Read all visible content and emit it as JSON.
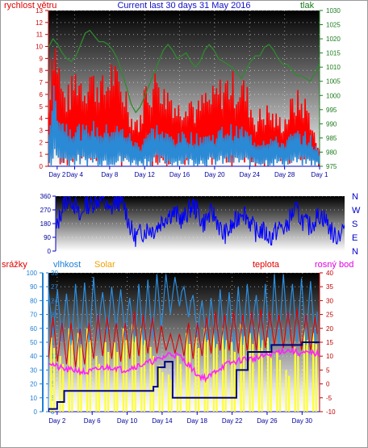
{
  "chart_data": [
    {
      "type": "line",
      "title": "Current last 30 days 31 May 2016",
      "y_left_label": "rychlost větru",
      "y_right_label": "tlak",
      "y_left_range": [
        0,
        13
      ],
      "y_right_range": [
        975,
        1030
      ],
      "y_left_ticks": [
        "0",
        "1",
        "2",
        "3",
        "4",
        "5",
        "6",
        "7",
        "8",
        "9",
        "10",
        "11",
        "12",
        "13"
      ],
      "y_right_ticks": [
        "975",
        "980",
        "985",
        "990",
        "995",
        "1000",
        "1005",
        "1010",
        "1015",
        "1020",
        "1025",
        "1030"
      ],
      "x_ticks": [
        "Day 2",
        "Day 4",
        "Day 8",
        "Day 12",
        "Day 16",
        "Day 20",
        "Day 24",
        "Day 28",
        "Day 1"
      ],
      "x_tick_days": [
        2,
        4,
        8,
        12,
        16,
        20,
        24,
        28,
        32
      ],
      "series": [
        {
          "name": "",
          "axis": "left",
          "color": "#ff0000",
          "values": [
            4.5,
            10.5,
            8.6,
            5.8,
            5.4,
            6.0,
            7.2,
            6.8,
            6.3,
            7.6,
            6.5,
            6.9,
            6.0,
            6.8,
            7.8,
            6.5,
            5.9,
            5.7,
            3.8,
            3.8,
            3.4,
            6.2,
            6.1,
            6.4,
            7.4,
            5.6,
            5.8,
            5.5,
            4.5,
            4.8,
            5.5,
            5.4,
            4.3,
            4.7,
            5.4,
            5.2,
            5.5,
            6.0,
            6.2,
            6.6,
            6.5,
            6.1,
            6.5,
            5.8,
            4.8,
            3.6,
            4.0,
            4.2,
            4.4,
            3.8,
            3.6,
            3.5,
            4.0,
            4.9,
            5.2,
            5.1,
            4.8,
            3.9,
            2.2,
            1.2
          ]
        },
        {
          "name": "",
          "axis": "left",
          "color": "#2a8ad6",
          "values": [
            3.2,
            6.2,
            5.4,
            4.0,
            3.6,
            3.4,
            3.5,
            3.2,
            3.0,
            3.6,
            3.4,
            3.2,
            3.0,
            3.3,
            3.5,
            3.2,
            3.1,
            3.0,
            2.4,
            2.0,
            1.8,
            2.8,
            3.0,
            3.2,
            3.4,
            2.8,
            2.6,
            2.6,
            2.4,
            2.6,
            2.8,
            2.7,
            2.4,
            2.6,
            2.8,
            2.6,
            2.7,
            2.9,
            3.1,
            3.3,
            3.2,
            3.0,
            3.2,
            2.9,
            2.6,
            2.2,
            2.3,
            2.4,
            2.5,
            2.3,
            2.2,
            2.1,
            2.3,
            2.6,
            2.8,
            2.7,
            2.6,
            2.4,
            1.8,
            1.0
          ]
        },
        {
          "name": "",
          "axis": "right",
          "color": "#2e8b2e",
          "values": [
            1017,
            1020,
            1018,
            1015,
            1013,
            1012,
            1014,
            1018,
            1022,
            1023,
            1021,
            1019,
            1019,
            1018,
            1016,
            1013,
            1008,
            1003,
            997,
            994,
            996,
            1000,
            1004,
            1008,
            1012,
            1016,
            1018,
            1016,
            1013,
            1014,
            1015,
            1012,
            1010,
            1012,
            1016,
            1018,
            1016,
            1013,
            1012,
            1011,
            1010,
            1008,
            1006,
            1009,
            1012,
            1014,
            1014,
            1017,
            1018,
            1016,
            1013,
            1011,
            1011,
            1009,
            1007,
            1007,
            1006,
            1005,
            1008,
            1011
          ]
        }
      ]
    },
    {
      "type": "line",
      "y_range": [
        0,
        360
      ],
      "y_ticks": [
        "0",
        "90",
        "180",
        "270",
        "360"
      ],
      "right_labels": [
        "N",
        "W",
        "S",
        "E",
        "N"
      ],
      "series": [
        {
          "name": "",
          "color": "#0000ff",
          "values": [
            120,
            250,
            330,
            350,
            300,
            200,
            320,
            300,
            330,
            340,
            320,
            250,
            320,
            330,
            300,
            180,
            90,
            110,
            130,
            150,
            140,
            170,
            210,
            240,
            250,
            230,
            200,
            260,
            300,
            260,
            180,
            220,
            250,
            200,
            110,
            120,
            160,
            200,
            280,
            230,
            170,
            120,
            140,
            110,
            90,
            130,
            160,
            140,
            230,
            270,
            220,
            180,
            160,
            210,
            240,
            210,
            150,
            90,
            120,
            160
          ]
        }
      ]
    },
    {
      "type": "line",
      "y_left_label": "srážky",
      "labels": [
        "vlhkost",
        "Solar",
        "teplota",
        "rosný bod"
      ],
      "y_left_range": [
        0,
        100
      ],
      "y_mid_range": [
        0,
        30
      ],
      "y_right_range": [
        -10,
        40
      ],
      "y_left_ticks": [
        "0",
        "10",
        "20",
        "30",
        "40",
        "50",
        "60",
        "70",
        "80",
        "90",
        "100"
      ],
      "y_mid_ticks": [
        "0",
        "3",
        "6",
        "9",
        "12",
        "15",
        "18",
        "21",
        "24",
        "27",
        "30"
      ],
      "y_right_ticks": [
        "-10",
        "-5",
        "0",
        "5",
        "10",
        "15",
        "20",
        "25",
        "30",
        "35",
        "40"
      ],
      "x_ticks": [
        "Day 2",
        "Day 6",
        "Day 10",
        "Day 14",
        "Day 18",
        "Day 22",
        "Day 26",
        "Day 30"
      ],
      "x_tick_days": [
        2,
        6,
        10,
        14,
        18,
        22,
        26,
        30
      ],
      "humidity_percent": [
        [
          55,
          88
        ],
        [
          50,
          88
        ],
        [
          48,
          85
        ],
        [
          46,
          92
        ],
        [
          50,
          93
        ],
        [
          52,
          97
        ],
        [
          56,
          86
        ],
        [
          58,
          90
        ],
        [
          54,
          88
        ],
        [
          50,
          82
        ],
        [
          48,
          92
        ],
        [
          52,
          95
        ],
        [
          60,
          99
        ],
        [
          70,
          99
        ],
        [
          76,
          97
        ],
        [
          68,
          90
        ],
        [
          55,
          84
        ],
        [
          50,
          80
        ],
        [
          46,
          82
        ],
        [
          45,
          88
        ],
        [
          44,
          86
        ],
        [
          48,
          90
        ],
        [
          52,
          92
        ],
        [
          46,
          84
        ],
        [
          44,
          92
        ],
        [
          48,
          99
        ],
        [
          52,
          99
        ],
        [
          50,
          92
        ],
        [
          48,
          96
        ],
        [
          50,
          94
        ]
      ],
      "temperature_c": [
        [
          9,
          24
        ],
        [
          8,
          22
        ],
        [
          7,
          22
        ],
        [
          6,
          20
        ],
        [
          7,
          22
        ],
        [
          9,
          25
        ],
        [
          10,
          24
        ],
        [
          9,
          22
        ],
        [
          8,
          22
        ],
        [
          9,
          26
        ],
        [
          10,
          25
        ],
        [
          11,
          24
        ],
        [
          11,
          21
        ],
        [
          12,
          18
        ],
        [
          11,
          18
        ],
        [
          10,
          22
        ],
        [
          9,
          22
        ],
        [
          10,
          24
        ],
        [
          11,
          26
        ],
        [
          12,
          25
        ],
        [
          12,
          26
        ],
        [
          11,
          25
        ],
        [
          12,
          26
        ],
        [
          12,
          27
        ],
        [
          13,
          26
        ],
        [
          14,
          25
        ],
        [
          13,
          26
        ],
        [
          12,
          27
        ],
        [
          12,
          25
        ],
        [
          12,
          24
        ]
      ],
      "dew_point_c": [
        8,
        6,
        5,
        5,
        4,
        5,
        6,
        6,
        5,
        6,
        7,
        8,
        9,
        11,
        10,
        7,
        3,
        2,
        5,
        7,
        8,
        9,
        9,
        10,
        11,
        12,
        12,
        11,
        11,
        11
      ],
      "solar_peak_mj": [
        16,
        12,
        18,
        17,
        18,
        12,
        15,
        15,
        18,
        19,
        18,
        14,
        10,
        8,
        12,
        17,
        16,
        18,
        17,
        18,
        15,
        19,
        17,
        18,
        16,
        13,
        9,
        14,
        18,
        17
      ],
      "precip_mm": [
        [
          1,
          2
        ],
        [
          2,
          7
        ],
        [
          2.8,
          15
        ],
        [
          3.3,
          15
        ],
        [
          13,
          18
        ],
        [
          13.5,
          32
        ],
        [
          14,
          32
        ],
        [
          14.3,
          36
        ],
        [
          14.6,
          36
        ],
        [
          14.8,
          36
        ],
        [
          15.2,
          10
        ],
        [
          16,
          10
        ],
        [
          17,
          10
        ],
        [
          22.5,
          30
        ],
        [
          23.2,
          30
        ],
        [
          23.8,
          43
        ],
        [
          26,
          43
        ],
        [
          26.5,
          48
        ],
        [
          27,
          48
        ],
        [
          29.5,
          48
        ],
        [
          30,
          50
        ],
        [
          31,
          50
        ]
      ]
    }
  ]
}
